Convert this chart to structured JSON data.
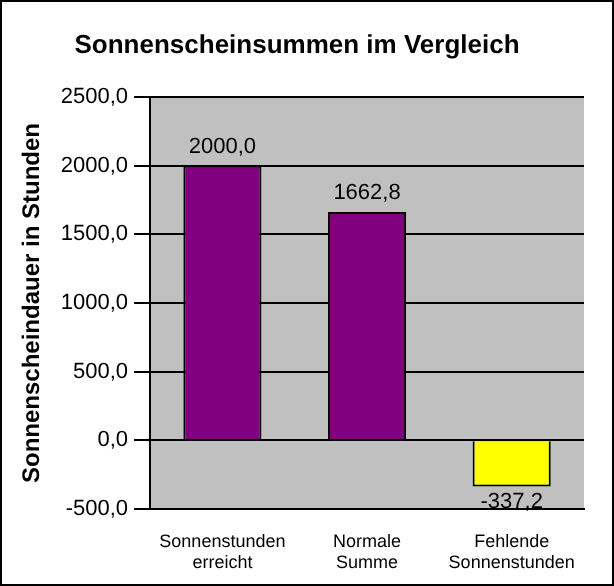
{
  "chart_data": {
    "type": "bar",
    "title": "Sonnenscheinsummen im Vergleich",
    "ylabel": "Sonnenscheindauer in Stunden",
    "categories": [
      "Sonnenstunden erreicht",
      "Normale Summe",
      "Fehlende Sonnenstunden"
    ],
    "values": [
      2000.0,
      1662.8,
      -337.2
    ],
    "colors": [
      "#800080",
      "#800080",
      "#ffff00"
    ],
    "value_labels": [
      "2000,0",
      "1662,8",
      "-337,2"
    ],
    "ylim": [
      -500,
      2500
    ],
    "yticks": [
      {
        "value": -500,
        "label": "-500,0"
      },
      {
        "value": 0,
        "label": "0,0"
      },
      {
        "value": 500,
        "label": "500,0"
      },
      {
        "value": 1000,
        "label": "1000,0"
      },
      {
        "value": 1500,
        "label": "1500,0"
      },
      {
        "value": 2000,
        "label": "2000,0"
      },
      {
        "value": 2500,
        "label": "2500,0"
      }
    ],
    "grid": "y",
    "legend": false
  }
}
